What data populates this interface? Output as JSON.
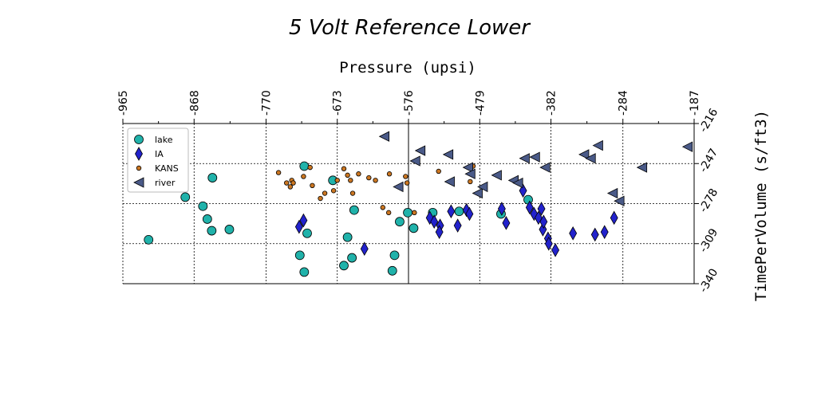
{
  "chart_data": {
    "type": "scatter",
    "title": "5 Volt Reference Lower",
    "xlabel": "Pressure (upsi)",
    "ylabel": "TimePerVolume (s/ft3)",
    "x_axis_position": "top",
    "y_axis_position": "right",
    "x_ticks": [
      "-965",
      "-868",
      "-770",
      "-673",
      "-576",
      "-479",
      "-382",
      "-284",
      "-187"
    ],
    "y_ticks": [
      "-216",
      "-247",
      "-278",
      "-309",
      "-340"
    ],
    "xlim": [
      -965,
      -187
    ],
    "ylim": [
      -340,
      -216
    ],
    "origin_lines": {
      "x": -576,
      "y": -340
    },
    "grid": true,
    "legend_position": "upper-left",
    "colors": {
      "lake": "#20b2aa",
      "IA": "#2222cc",
      "KANS": "#cc7722",
      "river": "#4a5a88"
    },
    "series": [
      {
        "name": "lake",
        "marker": "circle",
        "points": [
          [
            -930,
            -306
          ],
          [
            -856,
            -280
          ],
          [
            -850,
            -290
          ],
          [
            -844,
            -299
          ],
          [
            -820,
            -298
          ],
          [
            -843,
            -258
          ],
          [
            -880,
            -273
          ],
          [
            -718,
            -249
          ],
          [
            -679,
            -260
          ],
          [
            -714,
            -301
          ],
          [
            -724,
            -318
          ],
          [
            -718,
            -331
          ],
          [
            -664,
            -326
          ],
          [
            -653,
            -320
          ],
          [
            -659,
            -304
          ],
          [
            -650,
            -283
          ],
          [
            -577,
            -285
          ],
          [
            -588,
            -292
          ],
          [
            -569,
            -297
          ],
          [
            -595,
            -318
          ],
          [
            -598,
            -330
          ],
          [
            -543,
            -285
          ],
          [
            -507,
            -284
          ],
          [
            -450,
            -286
          ],
          [
            -413,
            -275
          ]
        ]
      },
      {
        "name": "IA",
        "marker": "diamond",
        "points": [
          [
            -725,
            -296
          ],
          [
            -719,
            -291
          ],
          [
            -636,
            -313
          ],
          [
            -547,
            -289
          ],
          [
            -541,
            -292
          ],
          [
            -533,
            -295
          ],
          [
            -534,
            -300
          ],
          [
            -518,
            -284
          ],
          [
            -509,
            -295
          ],
          [
            -497,
            -283
          ],
          [
            -493,
            -286
          ],
          [
            -449,
            -282
          ],
          [
            -443,
            -293
          ],
          [
            -420,
            -268
          ],
          [
            -411,
            -281
          ],
          [
            -405,
            -286
          ],
          [
            -399,
            -289
          ],
          [
            -395,
            -282
          ],
          [
            -393,
            -298
          ],
          [
            -392,
            -292
          ],
          [
            -386,
            -305
          ],
          [
            -385,
            -309
          ],
          [
            -376,
            -314
          ],
          [
            -352,
            -301
          ],
          [
            -322,
            -302
          ],
          [
            -309,
            -300
          ],
          [
            -296,
            -289
          ]
        ]
      },
      {
        "name": "KANS",
        "marker": "circle-small",
        "points": [
          [
            -753,
            -254
          ],
          [
            -742,
            -262
          ],
          [
            -737,
            -265
          ],
          [
            -735,
            -260
          ],
          [
            -733,
            -262
          ],
          [
            -719,
            -257
          ],
          [
            -710,
            -250
          ],
          [
            -707,
            -264
          ],
          [
            -696,
            -274
          ],
          [
            -690,
            -270
          ],
          [
            -678,
            -268
          ],
          [
            -673,
            -260
          ],
          [
            -659,
            -256
          ],
          [
            -655,
            -260
          ],
          [
            -652,
            -270
          ],
          [
            -644,
            -255
          ],
          [
            -630,
            -258
          ],
          [
            -621,
            -260
          ],
          [
            -611,
            -281
          ],
          [
            -603,
            -285
          ],
          [
            -580,
            -257
          ],
          [
            -578,
            -262
          ],
          [
            -568,
            -285
          ],
          [
            -535,
            -253
          ],
          [
            -492,
            -261
          ],
          [
            -488,
            -249
          ],
          [
            -664,
            -251
          ],
          [
            -602,
            -255
          ]
        ]
      },
      {
        "name": "river",
        "marker": "triangle-left",
        "points": [
          [
            -609,
            -226
          ],
          [
            -590,
            -265
          ],
          [
            -567,
            -245
          ],
          [
            -560,
            -237
          ],
          [
            -522,
            -240
          ],
          [
            -520,
            -261
          ],
          [
            -495,
            -250
          ],
          [
            -492,
            -255
          ],
          [
            -482,
            -270
          ],
          [
            -475,
            -265
          ],
          [
            -456,
            -256
          ],
          [
            -433,
            -260
          ],
          [
            -427,
            -262
          ],
          [
            -418,
            -243
          ],
          [
            -404,
            -242
          ],
          [
            -390,
            -250
          ],
          [
            -337,
            -240
          ],
          [
            -328,
            -243
          ],
          [
            -318,
            -233
          ],
          [
            -298,
            -270
          ],
          [
            -289,
            -276
          ],
          [
            -258,
            -250
          ],
          [
            -196,
            -234
          ]
        ]
      }
    ]
  }
}
